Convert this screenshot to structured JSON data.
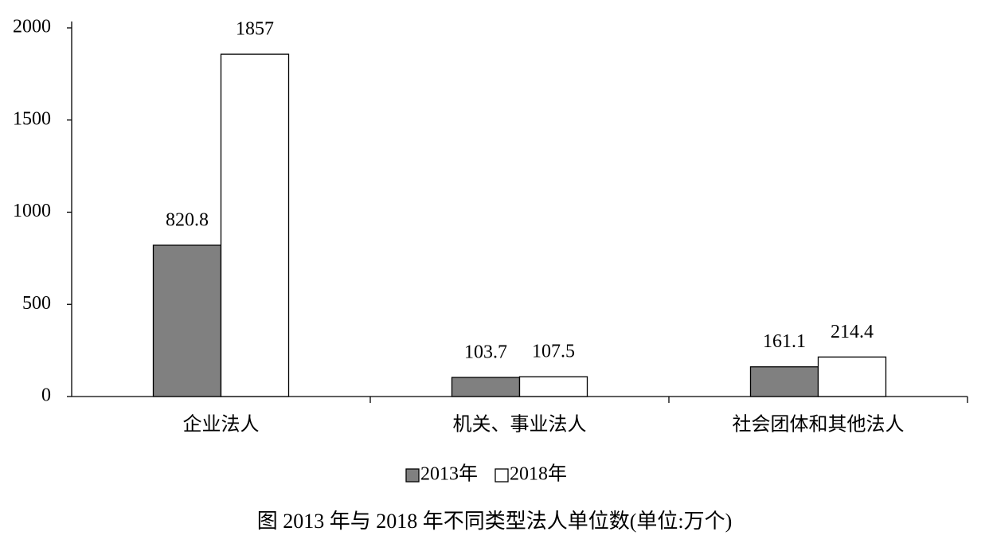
{
  "chart_data": {
    "type": "bar",
    "title": "图 2013 年与 2018 年不同类型法人单位数(单位:万个)",
    "categories": [
      "企业法人",
      "机关、事业法人",
      "社会团体和其他法人"
    ],
    "series": [
      {
        "name": "2013年",
        "color": "#808080",
        "values": [
          820.8,
          103.7,
          161.1
        ]
      },
      {
        "name": "2018年",
        "color": "#ffffff",
        "values": [
          1857,
          107.5,
          214.4
        ]
      }
    ],
    "ylim": [
      0,
      2000
    ],
    "yticks": [
      0,
      500,
      1000,
      1500,
      2000
    ],
    "grid": false,
    "legend": "bottom"
  }
}
